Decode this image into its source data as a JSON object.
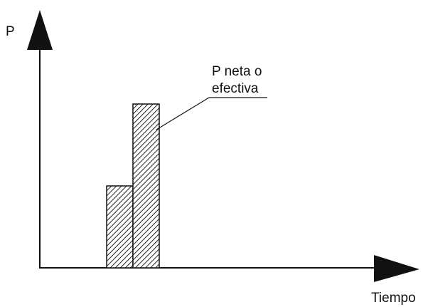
{
  "diagram": {
    "y_axis_label": "P",
    "x_axis_label": "Tiempo",
    "annotation": [
      "P neta o",
      "efectiva"
    ]
  }
}
